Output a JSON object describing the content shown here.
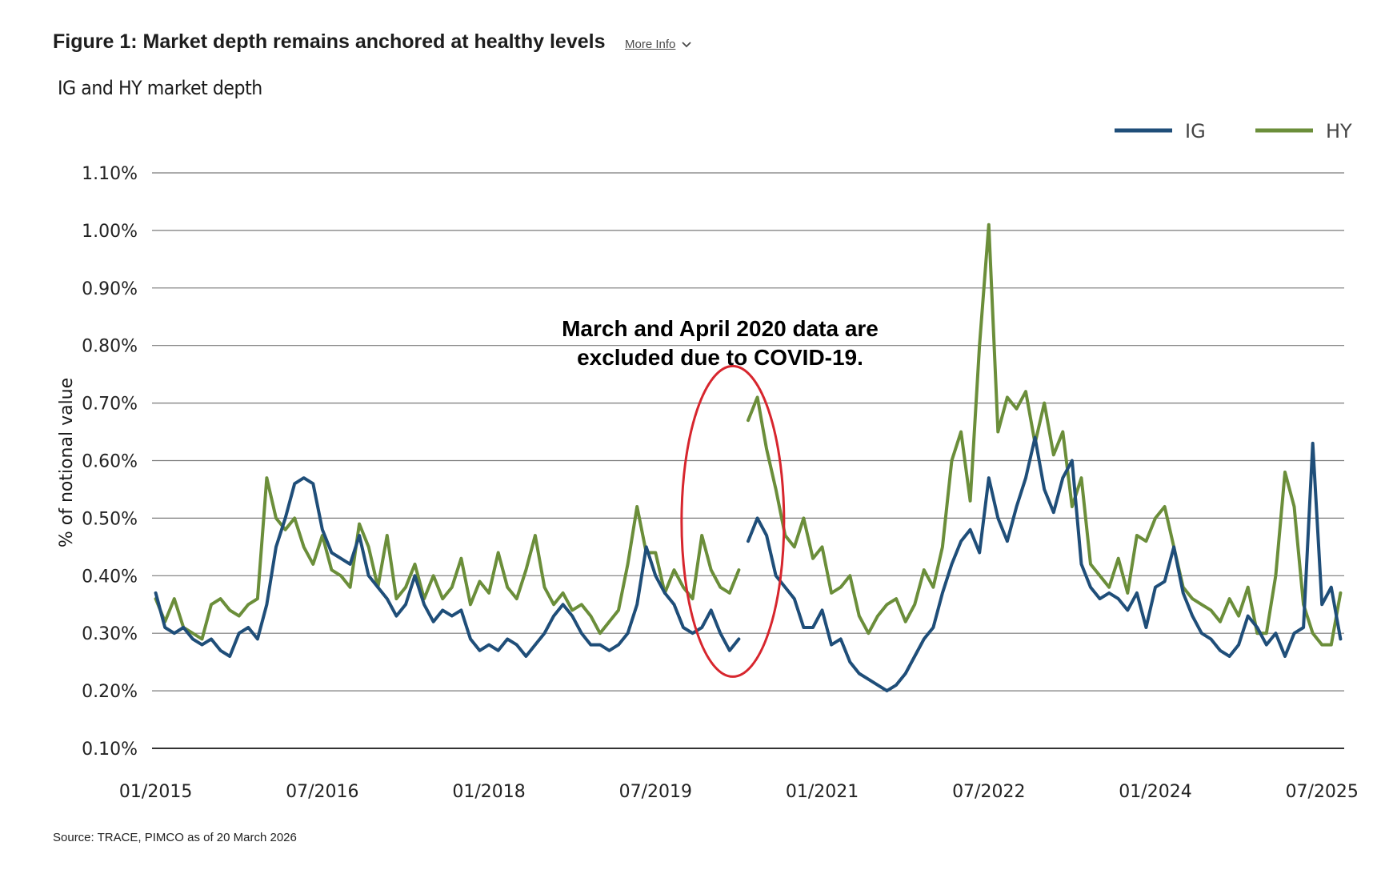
{
  "header": {
    "title": "Figure 1: Market depth remains anchored at healthy levels",
    "more_info": "More Info"
  },
  "subtitle": "IG and HY market depth",
  "source": "Source: TRACE, PIMCO as of 20 March 2026",
  "colors": {
    "IG": "#1f4e79",
    "HY": "#6b8e3a",
    "annotation_circle": "#d7262e",
    "grid": "#7a7a7a"
  },
  "chart_data": {
    "type": "line",
    "ylabel": "% of notional value",
    "ylim": [
      0.1,
      1.1
    ],
    "yticks": [
      0.1,
      0.2,
      0.3,
      0.4,
      0.5,
      0.6,
      0.7,
      0.8,
      0.9,
      1.0,
      1.1
    ],
    "ytick_labels": [
      "0.10%",
      "0.20%",
      "0.30%",
      "0.40%",
      "0.50%",
      "0.60%",
      "0.70%",
      "0.80%",
      "0.90%",
      "1.00%",
      "1.10%"
    ],
    "xlim": [
      "2015-01",
      "2025-09"
    ],
    "xticks": [
      "2015-01",
      "2016-07",
      "2018-01",
      "2019-07",
      "2021-01",
      "2022-07",
      "2024-01",
      "2025-07"
    ],
    "xtick_labels": [
      "01/2015",
      "07/2016",
      "01/2018",
      "07/2019",
      "01/2021",
      "07/2022",
      "01/2024",
      "07/2025"
    ],
    "legend": {
      "position": "top-right"
    },
    "annotation": {
      "lines": [
        "March and April 2020 data are",
        "excluded due to COVID-19."
      ],
      "circle_center": [
        "2020-03",
        0.5
      ],
      "gap": [
        "2020-03",
        "2020-05"
      ]
    },
    "series": [
      {
        "name": "IG",
        "points": [
          [
            "2015-01",
            0.37
          ],
          [
            "2015-02",
            0.31
          ],
          [
            "2015-03",
            0.3
          ],
          [
            "2015-04",
            0.31
          ],
          [
            "2015-05",
            0.29
          ],
          [
            "2015-06",
            0.28
          ],
          [
            "2015-07",
            0.29
          ],
          [
            "2015-08",
            0.27
          ],
          [
            "2015-09",
            0.26
          ],
          [
            "2015-10",
            0.3
          ],
          [
            "2015-11",
            0.31
          ],
          [
            "2015-12",
            0.29
          ],
          [
            "2016-01",
            0.35
          ],
          [
            "2016-02",
            0.45
          ],
          [
            "2016-03",
            0.5
          ],
          [
            "2016-04",
            0.56
          ],
          [
            "2016-05",
            0.57
          ],
          [
            "2016-06",
            0.56
          ],
          [
            "2016-07",
            0.48
          ],
          [
            "2016-08",
            0.44
          ],
          [
            "2016-09",
            0.43
          ],
          [
            "2016-10",
            0.42
          ],
          [
            "2016-11",
            0.47
          ],
          [
            "2016-12",
            0.4
          ],
          [
            "2017-01",
            0.38
          ],
          [
            "2017-02",
            0.36
          ],
          [
            "2017-03",
            0.33
          ],
          [
            "2017-04",
            0.35
          ],
          [
            "2017-05",
            0.4
          ],
          [
            "2017-06",
            0.35
          ],
          [
            "2017-07",
            0.32
          ],
          [
            "2017-08",
            0.34
          ],
          [
            "2017-09",
            0.33
          ],
          [
            "2017-10",
            0.34
          ],
          [
            "2017-11",
            0.29
          ],
          [
            "2017-12",
            0.27
          ],
          [
            "2018-01",
            0.28
          ],
          [
            "2018-02",
            0.27
          ],
          [
            "2018-03",
            0.29
          ],
          [
            "2018-04",
            0.28
          ],
          [
            "2018-05",
            0.26
          ],
          [
            "2018-06",
            0.28
          ],
          [
            "2018-07",
            0.3
          ],
          [
            "2018-08",
            0.33
          ],
          [
            "2018-09",
            0.35
          ],
          [
            "2018-10",
            0.33
          ],
          [
            "2018-11",
            0.3
          ],
          [
            "2018-12",
            0.28
          ],
          [
            "2019-01",
            0.28
          ],
          [
            "2019-02",
            0.27
          ],
          [
            "2019-03",
            0.28
          ],
          [
            "2019-04",
            0.3
          ],
          [
            "2019-05",
            0.35
          ],
          [
            "2019-06",
            0.45
          ],
          [
            "2019-07",
            0.4
          ],
          [
            "2019-08",
            0.37
          ],
          [
            "2019-09",
            0.35
          ],
          [
            "2019-10",
            0.31
          ],
          [
            "2019-11",
            0.3
          ],
          [
            "2019-12",
            0.31
          ],
          [
            "2020-01",
            0.34
          ],
          [
            "2020-02",
            0.3
          ],
          [
            "2020-03",
            0.27
          ],
          [
            "2020-04",
            0.29
          ],
          [
            "2020-05",
            0.46
          ],
          [
            "2020-06",
            0.5
          ],
          [
            "2020-07",
            0.47
          ],
          [
            "2020-08",
            0.4
          ],
          [
            "2020-09",
            0.38
          ],
          [
            "2020-10",
            0.36
          ],
          [
            "2020-11",
            0.31
          ],
          [
            "2020-12",
            0.31
          ],
          [
            "2021-01",
            0.34
          ],
          [
            "2021-02",
            0.28
          ],
          [
            "2021-03",
            0.29
          ],
          [
            "2021-04",
            0.25
          ],
          [
            "2021-05",
            0.23
          ],
          [
            "2021-06",
            0.22
          ],
          [
            "2021-07",
            0.21
          ],
          [
            "2021-08",
            0.2
          ],
          [
            "2021-09",
            0.21
          ],
          [
            "2021-10",
            0.23
          ],
          [
            "2021-11",
            0.26
          ],
          [
            "2021-12",
            0.29
          ],
          [
            "2022-01",
            0.31
          ],
          [
            "2022-02",
            0.37
          ],
          [
            "2022-03",
            0.42
          ],
          [
            "2022-04",
            0.46
          ],
          [
            "2022-05",
            0.48
          ],
          [
            "2022-06",
            0.44
          ],
          [
            "2022-07",
            0.57
          ],
          [
            "2022-08",
            0.5
          ],
          [
            "2022-09",
            0.46
          ],
          [
            "2022-10",
            0.52
          ],
          [
            "2022-11",
            0.57
          ],
          [
            "2022-12",
            0.64
          ],
          [
            "2023-01",
            0.55
          ],
          [
            "2023-02",
            0.51
          ],
          [
            "2023-03",
            0.57
          ],
          [
            "2023-04",
            0.6
          ],
          [
            "2023-05",
            0.42
          ],
          [
            "2023-06",
            0.38
          ],
          [
            "2023-07",
            0.36
          ],
          [
            "2023-08",
            0.37
          ],
          [
            "2023-09",
            0.36
          ],
          [
            "2023-10",
            0.34
          ],
          [
            "2023-11",
            0.37
          ],
          [
            "2023-12",
            0.31
          ],
          [
            "2024-01",
            0.38
          ],
          [
            "2024-02",
            0.39
          ],
          [
            "2024-03",
            0.45
          ],
          [
            "2024-04",
            0.37
          ],
          [
            "2024-05",
            0.33
          ],
          [
            "2024-06",
            0.3
          ],
          [
            "2024-07",
            0.29
          ],
          [
            "2024-08",
            0.27
          ],
          [
            "2024-09",
            0.26
          ],
          [
            "2024-10",
            0.28
          ],
          [
            "2024-11",
            0.33
          ],
          [
            "2024-12",
            0.31
          ],
          [
            "2025-01",
            0.28
          ],
          [
            "2025-02",
            0.3
          ],
          [
            "2025-03",
            0.26
          ],
          [
            "2025-04",
            0.3
          ],
          [
            "2025-05",
            0.31
          ],
          [
            "2025-06",
            0.63
          ],
          [
            "2025-07",
            0.35
          ],
          [
            "2025-08",
            0.38
          ],
          [
            "2025-09",
            0.29
          ]
        ]
      },
      {
        "name": "HY",
        "points": [
          [
            "2015-01",
            0.36
          ],
          [
            "2015-02",
            0.32
          ],
          [
            "2015-03",
            0.36
          ],
          [
            "2015-04",
            0.31
          ],
          [
            "2015-05",
            0.3
          ],
          [
            "2015-06",
            0.29
          ],
          [
            "2015-07",
            0.35
          ],
          [
            "2015-08",
            0.36
          ],
          [
            "2015-09",
            0.34
          ],
          [
            "2015-10",
            0.33
          ],
          [
            "2015-11",
            0.35
          ],
          [
            "2015-12",
            0.36
          ],
          [
            "2016-01",
            0.57
          ],
          [
            "2016-02",
            0.5
          ],
          [
            "2016-03",
            0.48
          ],
          [
            "2016-04",
            0.5
          ],
          [
            "2016-05",
            0.45
          ],
          [
            "2016-06",
            0.42
          ],
          [
            "2016-07",
            0.47
          ],
          [
            "2016-08",
            0.41
          ],
          [
            "2016-09",
            0.4
          ],
          [
            "2016-10",
            0.38
          ],
          [
            "2016-11",
            0.49
          ],
          [
            "2016-12",
            0.45
          ],
          [
            "2017-01",
            0.38
          ],
          [
            "2017-02",
            0.47
          ],
          [
            "2017-03",
            0.36
          ],
          [
            "2017-04",
            0.38
          ],
          [
            "2017-05",
            0.42
          ],
          [
            "2017-06",
            0.36
          ],
          [
            "2017-07",
            0.4
          ],
          [
            "2017-08",
            0.36
          ],
          [
            "2017-09",
            0.38
          ],
          [
            "2017-10",
            0.43
          ],
          [
            "2017-11",
            0.35
          ],
          [
            "2017-12",
            0.39
          ],
          [
            "2018-01",
            0.37
          ],
          [
            "2018-02",
            0.44
          ],
          [
            "2018-03",
            0.38
          ],
          [
            "2018-04",
            0.36
          ],
          [
            "2018-05",
            0.41
          ],
          [
            "2018-06",
            0.47
          ],
          [
            "2018-07",
            0.38
          ],
          [
            "2018-08",
            0.35
          ],
          [
            "2018-09",
            0.37
          ],
          [
            "2018-10",
            0.34
          ],
          [
            "2018-11",
            0.35
          ],
          [
            "2018-12",
            0.33
          ],
          [
            "2019-01",
            0.3
          ],
          [
            "2019-02",
            0.32
          ],
          [
            "2019-03",
            0.34
          ],
          [
            "2019-04",
            0.42
          ],
          [
            "2019-05",
            0.52
          ],
          [
            "2019-06",
            0.44
          ],
          [
            "2019-07",
            0.44
          ],
          [
            "2019-08",
            0.37
          ],
          [
            "2019-09",
            0.41
          ],
          [
            "2019-10",
            0.38
          ],
          [
            "2019-11",
            0.36
          ],
          [
            "2019-12",
            0.47
          ],
          [
            "2020-01",
            0.41
          ],
          [
            "2020-02",
            0.38
          ],
          [
            "2020-03",
            0.37
          ],
          [
            "2020-04",
            0.41
          ],
          [
            "2020-05",
            0.67
          ],
          [
            "2020-06",
            0.71
          ],
          [
            "2020-07",
            0.62
          ],
          [
            "2020-08",
            0.55
          ],
          [
            "2020-09",
            0.47
          ],
          [
            "2020-10",
            0.45
          ],
          [
            "2020-11",
            0.5
          ],
          [
            "2020-12",
            0.43
          ],
          [
            "2021-01",
            0.45
          ],
          [
            "2021-02",
            0.37
          ],
          [
            "2021-03",
            0.38
          ],
          [
            "2021-04",
            0.4
          ],
          [
            "2021-05",
            0.33
          ],
          [
            "2021-06",
            0.3
          ],
          [
            "2021-07",
            0.33
          ],
          [
            "2021-08",
            0.35
          ],
          [
            "2021-09",
            0.36
          ],
          [
            "2021-10",
            0.32
          ],
          [
            "2021-11",
            0.35
          ],
          [
            "2021-12",
            0.41
          ],
          [
            "2022-01",
            0.38
          ],
          [
            "2022-02",
            0.45
          ],
          [
            "2022-03",
            0.6
          ],
          [
            "2022-04",
            0.65
          ],
          [
            "2022-05",
            0.53
          ],
          [
            "2022-06",
            0.8
          ],
          [
            "2022-07",
            1.01
          ],
          [
            "2022-08",
            0.65
          ],
          [
            "2022-09",
            0.71
          ],
          [
            "2022-10",
            0.69
          ],
          [
            "2022-11",
            0.72
          ],
          [
            "2022-12",
            0.63
          ],
          [
            "2023-01",
            0.7
          ],
          [
            "2023-02",
            0.61
          ],
          [
            "2023-03",
            0.65
          ],
          [
            "2023-04",
            0.52
          ],
          [
            "2023-05",
            0.57
          ],
          [
            "2023-06",
            0.42
          ],
          [
            "2023-07",
            0.4
          ],
          [
            "2023-08",
            0.38
          ],
          [
            "2023-09",
            0.43
          ],
          [
            "2023-10",
            0.37
          ],
          [
            "2023-11",
            0.47
          ],
          [
            "2023-12",
            0.46
          ],
          [
            "2024-01",
            0.5
          ],
          [
            "2024-02",
            0.52
          ],
          [
            "2024-03",
            0.45
          ],
          [
            "2024-04",
            0.38
          ],
          [
            "2024-05",
            0.36
          ],
          [
            "2024-06",
            0.35
          ],
          [
            "2024-07",
            0.34
          ],
          [
            "2024-08",
            0.32
          ],
          [
            "2024-09",
            0.36
          ],
          [
            "2024-10",
            0.33
          ],
          [
            "2024-11",
            0.38
          ],
          [
            "2024-12",
            0.3
          ],
          [
            "2025-01",
            0.3
          ],
          [
            "2025-02",
            0.4
          ],
          [
            "2025-03",
            0.58
          ],
          [
            "2025-04",
            0.52
          ],
          [
            "2025-05",
            0.35
          ],
          [
            "2025-06",
            0.3
          ],
          [
            "2025-07",
            0.28
          ],
          [
            "2025-08",
            0.28
          ],
          [
            "2025-09",
            0.37
          ]
        ]
      }
    ]
  }
}
